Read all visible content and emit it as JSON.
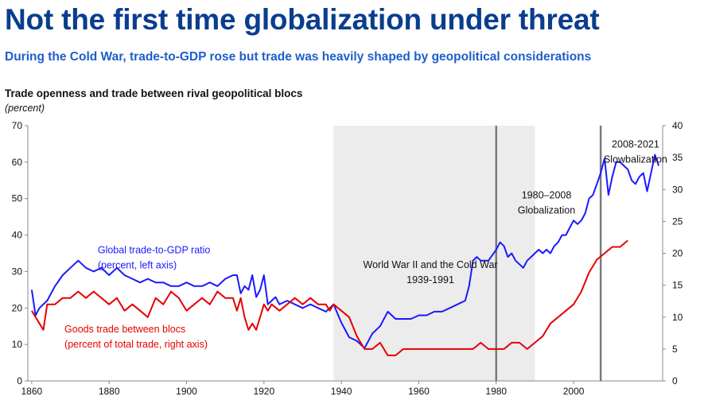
{
  "title": "Not the first time globalization under threat",
  "subtitle": "During the Cold War, trade-to-GDP rose but trade was heavily shaped by geopolitical considerations",
  "chart_data": {
    "type": "line",
    "title": "Trade openness and trade between rival geopolitical blocs",
    "unit_label": "(percent)",
    "x_ticks": [
      1860,
      1880,
      1900,
      1920,
      1940,
      1960,
      1980,
      2000
    ],
    "xlim": [
      1859,
      2023
    ],
    "y_left": {
      "ylim": [
        0,
        70
      ],
      "ticks": [
        0,
        10,
        20,
        30,
        40,
        50,
        60,
        70
      ]
    },
    "y_right": {
      "ylim": [
        0,
        40
      ],
      "ticks": [
        0,
        5,
        10,
        15,
        20,
        25,
        30,
        35,
        40
      ]
    },
    "shaded_period": {
      "start": 1938,
      "end": 1990
    },
    "vlines": [
      1980,
      2007
    ],
    "annotations": {
      "ww2": {
        "line1": "World War II and the Cold War",
        "line2": "1939-1991",
        "x": 1963,
        "y_left": 31
      },
      "glob": {
        "line1": "1980–2008",
        "line2": "Globalization",
        "x": 1993,
        "y_left": 50
      },
      "slow": {
        "line1": "2008-2021",
        "line2": "Slowbalization",
        "x": 2016,
        "y_left": 64
      }
    },
    "series": [
      {
        "name": "Global trade-to-GDP ratio",
        "name_sub": "(percent, left axis)",
        "axis": "left",
        "color": "#1a1aff",
        "label_x": 1875,
        "label_y_left": 35,
        "x": [
          1860,
          1861,
          1862,
          1864,
          1866,
          1868,
          1870,
          1872,
          1874,
          1876,
          1878,
          1880,
          1882,
          1884,
          1886,
          1888,
          1890,
          1892,
          1894,
          1896,
          1898,
          1900,
          1902,
          1904,
          1906,
          1908,
          1910,
          1912,
          1913,
          1914,
          1915,
          1916,
          1917,
          1918,
          1919,
          1920,
          1921,
          1922,
          1923,
          1924,
          1926,
          1928,
          1930,
          1932,
          1934,
          1936,
          1938,
          1940,
          1942,
          1944,
          1946,
          1948,
          1950,
          1952,
          1954,
          1956,
          1958,
          1960,
          1962,
          1964,
          1966,
          1968,
          1970,
          1972,
          1973,
          1974,
          1975,
          1976,
          1978,
          1980,
          1981,
          1982,
          1983,
          1984,
          1985,
          1986,
          1987,
          1988,
          1989,
          1990,
          1991,
          1992,
          1993,
          1994,
          1995,
          1996,
          1997,
          1998,
          1999,
          2000,
          2001,
          2002,
          2003,
          2004,
          2005,
          2006,
          2007,
          2008,
          2009,
          2010,
          2011,
          2012,
          2013,
          2014,
          2015,
          2016,
          2017,
          2018,
          2019,
          2020,
          2021,
          2022
        ],
        "values": [
          25,
          18,
          20,
          22,
          26,
          29,
          31,
          33,
          31,
          30,
          31,
          29,
          31,
          29,
          28,
          27,
          28,
          27,
          27,
          26,
          26,
          27,
          26,
          26,
          27,
          26,
          28,
          29,
          29,
          24,
          26,
          25,
          29,
          23,
          25,
          29,
          21,
          22,
          23,
          21,
          22,
          21,
          20,
          21,
          20,
          19,
          21,
          16,
          12,
          11,
          9,
          13,
          15,
          19,
          17,
          17,
          17,
          18,
          18,
          19,
          19,
          20,
          21,
          22,
          26,
          33,
          34,
          33,
          33,
          36,
          38,
          37,
          34,
          35,
          33,
          32,
          31,
          33,
          34,
          35,
          36,
          35,
          36,
          35,
          37,
          38,
          40,
          40,
          42,
          44,
          43,
          44,
          46,
          50,
          51,
          54,
          57,
          61,
          51,
          56,
          60,
          60,
          59,
          58,
          55,
          54,
          56,
          57,
          52,
          57,
          62,
          59
        ]
      },
      {
        "name": "Goods trade between blocs",
        "name_sub": "(percent of total trade, right axis)",
        "axis": "right",
        "color": "#e60000",
        "label_x": 1866,
        "label_y_left": 14,
        "x": [
          1860,
          1861,
          1862,
          1863,
          1864,
          1866,
          1868,
          1870,
          1872,
          1874,
          1876,
          1878,
          1880,
          1882,
          1884,
          1886,
          1888,
          1890,
          1892,
          1894,
          1896,
          1898,
          1900,
          1902,
          1904,
          1906,
          1908,
          1910,
          1912,
          1913,
          1914,
          1915,
          1916,
          1917,
          1918,
          1919,
          1920,
          1921,
          1922,
          1924,
          1926,
          1928,
          1930,
          1932,
          1934,
          1936,
          1937,
          1938,
          1940,
          1942,
          1944,
          1946,
          1948,
          1950,
          1952,
          1954,
          1956,
          1958,
          1960,
          1962,
          1964,
          1966,
          1968,
          1970,
          1972,
          1974,
          1976,
          1978,
          1980,
          1982,
          1984,
          1986,
          1988,
          1990,
          1992,
          1994,
          1996,
          1998,
          2000,
          2002,
          2004,
          2006,
          2008,
          2010,
          2012,
          2014
        ],
        "values": [
          11,
          10,
          9,
          8,
          12,
          12,
          13,
          13,
          14,
          13,
          14,
          13,
          12,
          13,
          11,
          12,
          11,
          10,
          13,
          12,
          14,
          13,
          11,
          12,
          13,
          12,
          14,
          13,
          13,
          11,
          13,
          10,
          8,
          9,
          8,
          10,
          12,
          11,
          12,
          11,
          12,
          13,
          12,
          13,
          12,
          12,
          11,
          12,
          11,
          10,
          7,
          5,
          5,
          6,
          4,
          4,
          5,
          5,
          5,
          5,
          5,
          5,
          5,
          5,
          5,
          5,
          6,
          5,
          5,
          5,
          6,
          6,
          5,
          6,
          7,
          9,
          10,
          11,
          12,
          14,
          17,
          19,
          20,
          21,
          21,
          22
        ]
      }
    ]
  }
}
